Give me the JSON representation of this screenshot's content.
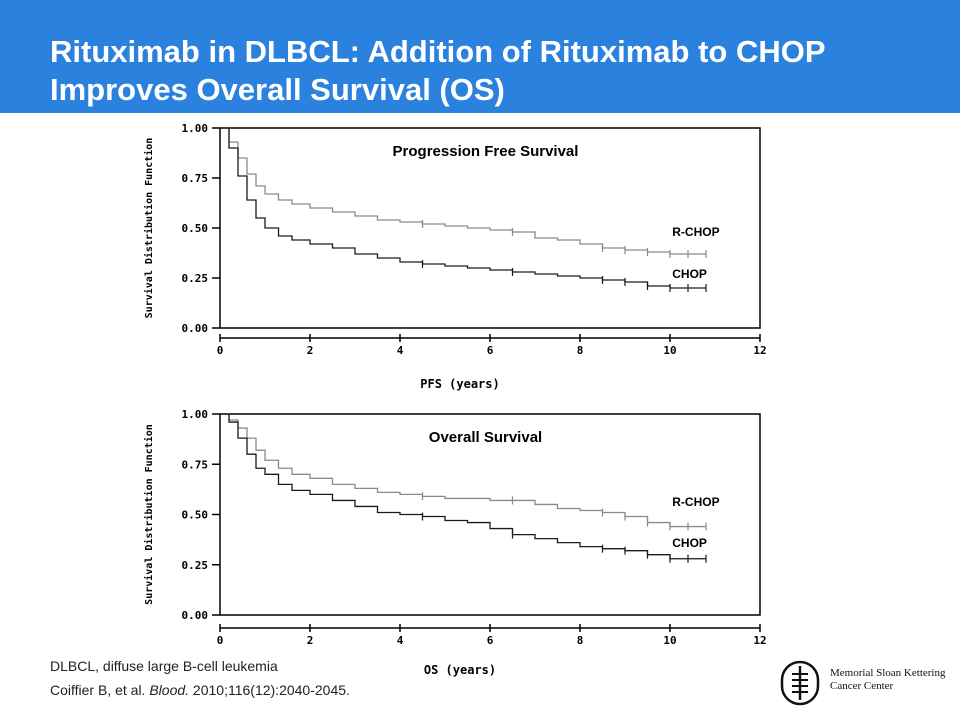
{
  "slide": {
    "title_line1": "Rituximab in DLBCL: Addition of Rituximab to CHOP",
    "title_line2": "Improves Overall Survival (OS)",
    "header_color": "#2b82de"
  },
  "footnotes": {
    "line1": "DLBCL, diffuse large B-cell leukemia",
    "line2_authors": "Coiffier B, et al. ",
    "line2_journal": "Blood.",
    "line2_rest": " 2010;116(12):2040-2045."
  },
  "logo": {
    "line1": "Memorial Sloan Kettering",
    "line2": "Cancer Center",
    "icon": "msk-logo-icon"
  },
  "chart_data": [
    {
      "type": "line",
      "title": "Progression Free Survival",
      "xlabel": "PFS (years)",
      "ylabel": "Survival Distribution Function",
      "xlim": [
        0,
        12
      ],
      "ylim": [
        0,
        1
      ],
      "xticks": [
        "0",
        "2",
        "4",
        "6",
        "8",
        "10",
        "12"
      ],
      "yticks": [
        "0.00",
        "0.25",
        "0.50",
        "0.75",
        "1.00"
      ],
      "grid": false,
      "series": [
        {
          "name": "R-CHOP",
          "color": "#8a8a8a",
          "x": [
            0,
            0.2,
            0.4,
            0.6,
            0.8,
            1.0,
            1.3,
            1.6,
            2.0,
            2.5,
            3.0,
            3.5,
            4.0,
            4.5,
            5.0,
            5.5,
            6.0,
            6.5,
            7.0,
            7.5,
            8.0,
            8.5,
            9.0,
            9.5,
            10.0,
            10.4,
            10.8
          ],
          "y": [
            1.0,
            0.93,
            0.85,
            0.77,
            0.71,
            0.67,
            0.64,
            0.62,
            0.6,
            0.58,
            0.56,
            0.54,
            0.53,
            0.52,
            0.51,
            0.5,
            0.49,
            0.48,
            0.45,
            0.44,
            0.42,
            0.4,
            0.39,
            0.38,
            0.37,
            0.37,
            0.37
          ]
        },
        {
          "name": "CHOP",
          "color": "#1a1a1a",
          "x": [
            0,
            0.2,
            0.4,
            0.6,
            0.8,
            1.0,
            1.3,
            1.6,
            2.0,
            2.5,
            3.0,
            3.5,
            4.0,
            4.5,
            5.0,
            5.5,
            6.0,
            6.5,
            7.0,
            7.5,
            8.0,
            8.5,
            9.0,
            9.5,
            10.0,
            10.4,
            10.8
          ],
          "y": [
            1.0,
            0.9,
            0.76,
            0.64,
            0.55,
            0.5,
            0.46,
            0.44,
            0.42,
            0.4,
            0.37,
            0.35,
            0.33,
            0.32,
            0.31,
            0.3,
            0.29,
            0.28,
            0.27,
            0.26,
            0.25,
            0.24,
            0.23,
            0.21,
            0.2,
            0.2,
            0.2
          ]
        }
      ],
      "legend_labels": [
        "R-CHOP",
        "CHOP"
      ]
    },
    {
      "type": "line",
      "title": "Overall Survival",
      "xlabel": "OS (years)",
      "ylabel": "Survival Distribution Function",
      "xlim": [
        0,
        12
      ],
      "ylim": [
        0,
        1
      ],
      "xticks": [
        "0",
        "2",
        "4",
        "6",
        "8",
        "10",
        "12"
      ],
      "yticks": [
        "0.00",
        "0.25",
        "0.50",
        "0.75",
        "1.00"
      ],
      "grid": false,
      "series": [
        {
          "name": "R-CHOP",
          "color": "#8a8a8a",
          "x": [
            0,
            0.2,
            0.4,
            0.6,
            0.8,
            1.0,
            1.3,
            1.6,
            2.0,
            2.5,
            3.0,
            3.5,
            4.0,
            4.5,
            5.0,
            5.5,
            6.0,
            6.5,
            7.0,
            7.5,
            8.0,
            8.5,
            9.0,
            9.5,
            10.0,
            10.4,
            10.8
          ],
          "y": [
            1.0,
            0.97,
            0.93,
            0.88,
            0.82,
            0.77,
            0.73,
            0.7,
            0.68,
            0.65,
            0.63,
            0.61,
            0.6,
            0.59,
            0.58,
            0.58,
            0.57,
            0.57,
            0.55,
            0.53,
            0.52,
            0.51,
            0.49,
            0.46,
            0.44,
            0.44,
            0.44
          ]
        },
        {
          "name": "CHOP",
          "color": "#1a1a1a",
          "x": [
            0,
            0.2,
            0.4,
            0.6,
            0.8,
            1.0,
            1.3,
            1.6,
            2.0,
            2.5,
            3.0,
            3.5,
            4.0,
            4.5,
            5.0,
            5.5,
            6.0,
            6.5,
            7.0,
            7.5,
            8.0,
            8.5,
            9.0,
            9.5,
            10.0,
            10.4,
            10.8
          ],
          "y": [
            1.0,
            0.96,
            0.88,
            0.8,
            0.73,
            0.7,
            0.65,
            0.62,
            0.6,
            0.57,
            0.54,
            0.51,
            0.5,
            0.49,
            0.47,
            0.46,
            0.43,
            0.4,
            0.38,
            0.36,
            0.34,
            0.33,
            0.32,
            0.3,
            0.28,
            0.28,
            0.28
          ]
        }
      ],
      "legend_labels": [
        "R-CHOP",
        "CHOP"
      ]
    }
  ]
}
